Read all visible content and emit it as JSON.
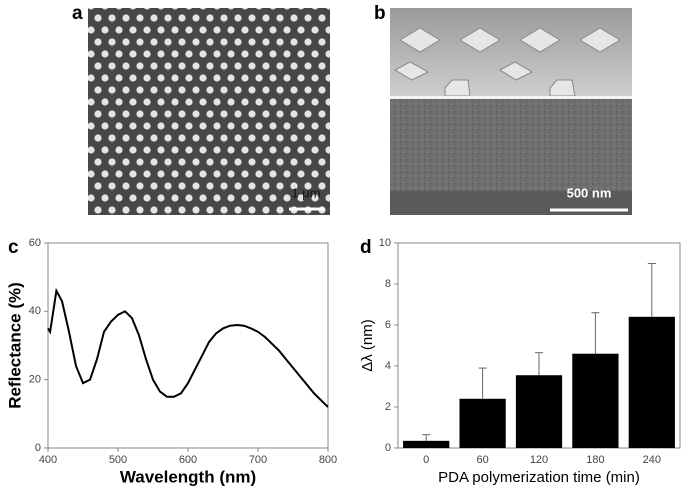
{
  "images": [
    {
      "panel_label": "a",
      "scale_bar": "1 μm"
    },
    {
      "panel_label": "b",
      "scale_bar": "500 nm"
    }
  ],
  "chart_data": [
    {
      "type": "line",
      "panel_label": "c",
      "x_label": "Wavelength (nm)",
      "y_label": "Reflectance (%)",
      "x": [
        400,
        403,
        412,
        420,
        430,
        440,
        450,
        460,
        470,
        480,
        490,
        500,
        510,
        520,
        530,
        540,
        550,
        560,
        570,
        580,
        590,
        600,
        610,
        620,
        630,
        640,
        650,
        660,
        670,
        680,
        690,
        700,
        710,
        720,
        730,
        740,
        750,
        760,
        770,
        780,
        790,
        800
      ],
      "series": [
        {
          "color": "#000000",
          "values": [
            35,
            34,
            46,
            43,
            34,
            24,
            19,
            20,
            26,
            34,
            37,
            39,
            40,
            38,
            33,
            26,
            20,
            16.5,
            15,
            15,
            16,
            19,
            23,
            27,
            31,
            33.5,
            35,
            35.8,
            36,
            35.8,
            35,
            34,
            32.5,
            30.5,
            28.5,
            26,
            23.5,
            21,
            18.5,
            16,
            14,
            12
          ]
        }
      ],
      "xlim": [
        400,
        800
      ],
      "xticks": [
        400,
        500,
        600,
        700,
        800
      ],
      "ylim": [
        0,
        60
      ],
      "yticks": [
        0,
        20,
        40,
        60
      ]
    },
    {
      "type": "bar",
      "panel_label": "d",
      "x_label": "PDA polymerization time (min)",
      "y_label": "Δλ (nm)",
      "categories": [
        "0",
        "60",
        "120",
        "180",
        "240"
      ],
      "values": [
        0.35,
        2.4,
        3.55,
        4.6,
        6.4
      ],
      "errors": [
        0.3,
        1.5,
        1.1,
        2.0,
        2.6
      ],
      "color": "#000000",
      "ylim": [
        0,
        10
      ],
      "yticks": [
        0,
        2,
        4,
        6,
        8,
        10
      ]
    }
  ]
}
